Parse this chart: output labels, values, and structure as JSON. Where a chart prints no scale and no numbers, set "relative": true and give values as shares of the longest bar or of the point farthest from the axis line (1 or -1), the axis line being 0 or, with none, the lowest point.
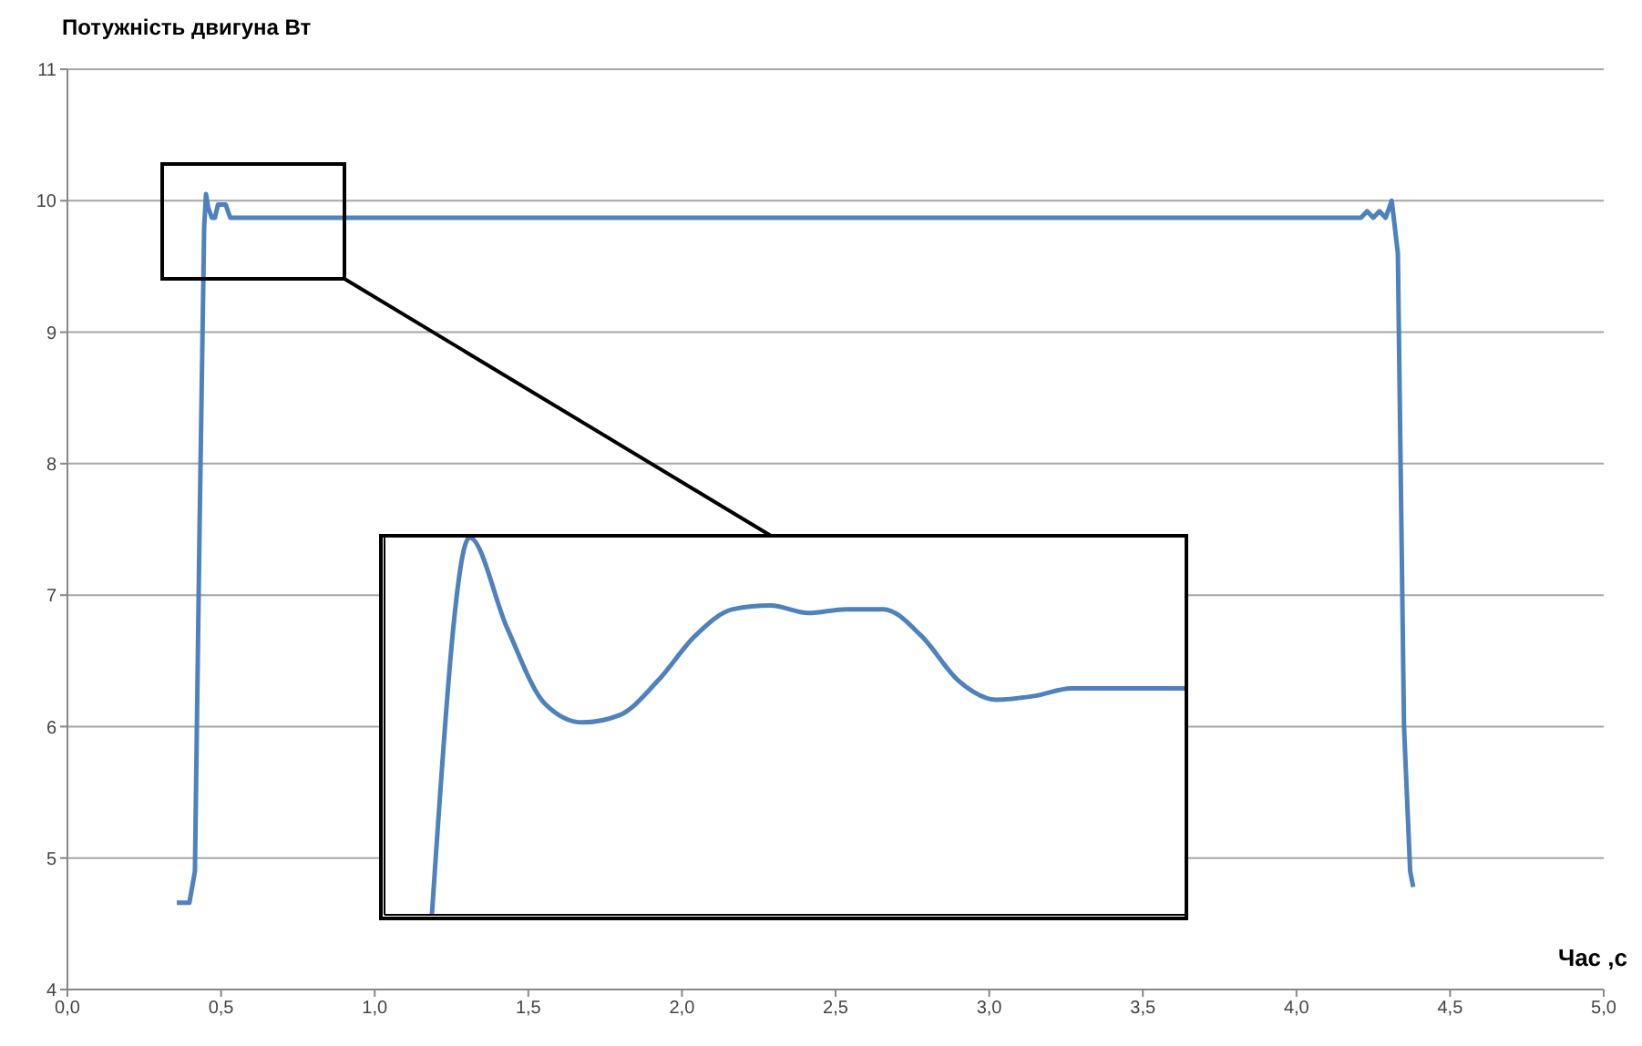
{
  "chart_data": [
    {
      "type": "line",
      "ylabel": "Потужність двигуна Вт",
      "xlabel": "Час ,с",
      "x": [
        0.356,
        0.397,
        0.415,
        0.43,
        0.445,
        0.451,
        0.458,
        0.47,
        0.48,
        0.49,
        0.515,
        0.53,
        4.21,
        4.23,
        4.25,
        4.27,
        4.29,
        4.31,
        4.33,
        4.35,
        4.37,
        4.38
      ],
      "series": [
        {
          "color": "#4f81bd",
          "values": [
            4.66,
            4.66,
            4.9,
            7.5,
            9.8,
            10.05,
            9.95,
            9.87,
            9.87,
            9.97,
            9.97,
            9.87,
            9.87,
            9.92,
            9.87,
            9.92,
            9.87,
            10.0,
            9.6,
            6.0,
            4.9,
            4.78
          ]
        }
      ],
      "xlim": [
        0,
        5
      ],
      "xticks": [
        {
          "value": 0,
          "label": "0,0"
        },
        {
          "value": 0.5,
          "label": "0,5"
        },
        {
          "value": 1,
          "label": "1,0"
        },
        {
          "value": 1.5,
          "label": "1,5"
        },
        {
          "value": 2,
          "label": "2,0"
        },
        {
          "value": 2.5,
          "label": "2,5"
        },
        {
          "value": 3,
          "label": "3,0"
        },
        {
          "value": 3.5,
          "label": "3,5"
        },
        {
          "value": 4,
          "label": "4,0"
        },
        {
          "value": 4.5,
          "label": "4,5"
        },
        {
          "value": 5,
          "label": "5,0"
        }
      ],
      "ylim": [
        4,
        11
      ],
      "yticks": [
        4,
        5,
        6,
        7,
        8,
        9,
        10,
        11
      ],
      "grid": "y",
      "marker": "none",
      "line_style": "solid"
    },
    {
      "type": "line",
      "relative": true,
      "categories": [
        null,
        null,
        null,
        null,
        null,
        null,
        null,
        null,
        null,
        null,
        null,
        null,
        null,
        null,
        null,
        null,
        null,
        null,
        null,
        null,
        null
      ],
      "series": [
        {
          "color": "#4f81bd",
          "values": [
            0,
            1,
            0.76,
            0.56,
            0.51,
            0.53,
            0.62,
            0.74,
            0.81,
            0.82,
            0.8,
            0.81,
            0.81,
            0.74,
            0.62,
            0.57,
            0.58,
            0.6,
            0.6,
            0.6,
            0.6
          ]
        }
      ],
      "marker": "none",
      "line_style": "solid"
    }
  ]
}
